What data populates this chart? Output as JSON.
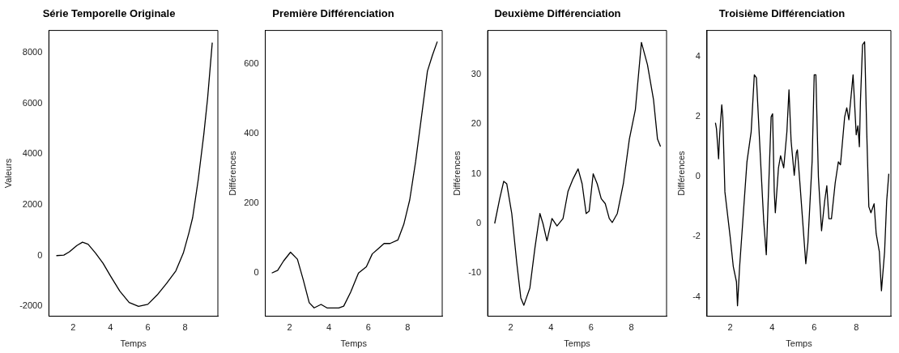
{
  "chart_data": [
    {
      "type": "line",
      "title": "Série Temporelle Originale",
      "xlabel": "Temps",
      "ylabel": "Valeurs",
      "color": "#000000",
      "grid": false,
      "xlim": [
        0.7,
        9.75
      ],
      "ylim": [
        -2390,
        8880
      ],
      "xticks": [
        2,
        4,
        6,
        8
      ],
      "yticks": [
        -2000,
        0,
        2000,
        4000,
        6000,
        8000
      ],
      "x": [
        1.1,
        1.5,
        1.8,
        2.2,
        2.5,
        2.8,
        3.2,
        3.6,
        4,
        4.5,
        5,
        5.5,
        6,
        6.5,
        7,
        7.5,
        7.9,
        8.2,
        8.4,
        8.7,
        9,
        9.2,
        9.45
      ],
      "values": [
        0,
        20,
        150,
        400,
        530,
        450,
        100,
        -300,
        -800,
        -1400,
        -1850,
        -2000,
        -1920,
        -1550,
        -1100,
        -600,
        100,
        900,
        1500,
        3000,
        4800,
        6200,
        8400
      ]
    },
    {
      "type": "line",
      "title": "Première Différenciation",
      "xlabel": "Temps",
      "ylabel": "Différences",
      "color": "#000000",
      "grid": false,
      "xlim": [
        0.77,
        9.75
      ],
      "ylim": [
        -124,
        697
      ],
      "xticks": [
        2,
        4,
        6,
        8
      ],
      "yticks": [
        0,
        200,
        400,
        600
      ],
      "x": [
        1.1,
        1.4,
        1.7,
        2.05,
        2.4,
        2.7,
        3,
        3.25,
        3.6,
        3.9,
        4.5,
        4.75,
        5.1,
        5.5,
        5.9,
        6.2,
        6.5,
        6.8,
        7.1,
        7.5,
        7.8,
        8.1,
        8.4,
        8.7,
        9,
        9.25,
        9.5
      ],
      "values": [
        0,
        8,
        35,
        60,
        40,
        -20,
        -85,
        -100,
        -90,
        -100,
        -100,
        -95,
        -55,
        0,
        18,
        55,
        70,
        85,
        85,
        95,
        140,
        210,
        320,
        450,
        580,
        625,
        665
      ]
    },
    {
      "type": "line",
      "title": "Deuxième Différenciation",
      "xlabel": "Temps",
      "ylabel": "Différences",
      "color": "#000000",
      "grid": false,
      "xlim": [
        0.85,
        9.75
      ],
      "ylim": [
        -18.7,
        38.9
      ],
      "xticks": [
        2,
        4,
        6,
        8
      ],
      "yticks": [
        -10,
        0,
        10,
        20,
        30
      ],
      "x": [
        1.2,
        1.45,
        1.65,
        1.8,
        2.05,
        2.3,
        2.5,
        2.65,
        2.95,
        3.2,
        3.45,
        3.6,
        3.8,
        4.05,
        4.3,
        4.6,
        4.85,
        5.1,
        5.35,
        5.55,
        5.75,
        5.9,
        6.1,
        6.3,
        6.5,
        6.7,
        6.9,
        7.05,
        7.3,
        7.6,
        7.9,
        8.2,
        8.5,
        8.8,
        9.1,
        9.3,
        9.45
      ],
      "values": [
        0,
        5,
        8.5,
        8,
        2,
        -8,
        -15,
        -16.5,
        -13,
        -5,
        2,
        0,
        -3.5,
        1,
        -0.5,
        1,
        6.5,
        9,
        11,
        8,
        2,
        2.5,
        10,
        8,
        5,
        4,
        1,
        0.2,
        2,
        8,
        17,
        23,
        36.5,
        32,
        25,
        17,
        15.5
      ]
    },
    {
      "type": "line",
      "title": "Troisième Différenciation",
      "xlabel": "Temps",
      "ylabel": "Différences",
      "color": "#000000",
      "grid": false,
      "xlim": [
        0.9,
        9.65
      ],
      "ylim": [
        -4.65,
        4.88
      ],
      "xticks": [
        2,
        4,
        6,
        8
      ],
      "yticks": [
        -4,
        -2,
        0,
        2,
        4
      ],
      "x": [
        1.3,
        1.35,
        1.45,
        1.5,
        1.6,
        1.65,
        1.75,
        2,
        2.15,
        2.3,
        2.35,
        2.45,
        2.6,
        2.8,
        3,
        3.15,
        3.25,
        3.45,
        3.6,
        3.72,
        3.85,
        3.95,
        4.02,
        4.1,
        4.15,
        4.3,
        4.4,
        4.55,
        4.7,
        4.8,
        4.9,
        5.05,
        5.15,
        5.2,
        5.35,
        5.6,
        5.7,
        5.9,
        6,
        6.08,
        6.2,
        6.35,
        6.5,
        6.6,
        6.7,
        6.82,
        7,
        7.15,
        7.25,
        7.45,
        7.55,
        7.65,
        7.85,
        8,
        8.08,
        8.15,
        8.2,
        8.3,
        8.4,
        8.5,
        8.6,
        8.7,
        8.85,
        8.95,
        9.1,
        9.2,
        9.35,
        9.45,
        9.55
      ],
      "values": [
        1.8,
        1.6,
        0.6,
        1.4,
        2.4,
        2,
        -0.5,
        -2,
        -3,
        -3.5,
        -4.3,
        -3,
        -1.5,
        0.5,
        1.5,
        3.4,
        3.3,
        0.5,
        -1.5,
        -2.6,
        0,
        2,
        2.1,
        -0.5,
        -1.2,
        0.3,
        0.7,
        0.3,
        1.5,
        2.9,
        1.2,
        0.05,
        0.8,
        0.9,
        -0.5,
        -2.9,
        -2.2,
        0.5,
        3.4,
        3.4,
        0,
        -1.8,
        -0.8,
        -0.3,
        -1.4,
        -1.4,
        -0.2,
        0.5,
        0.4,
        2,
        2.3,
        1.9,
        3.4,
        1.4,
        1.7,
        1,
        2.5,
        4.4,
        4.5,
        1.5,
        -1,
        -1.2,
        -0.9,
        -1.9,
        -2.5,
        -3.8,
        -2.5,
        -0.8,
        0.1
      ]
    }
  ]
}
